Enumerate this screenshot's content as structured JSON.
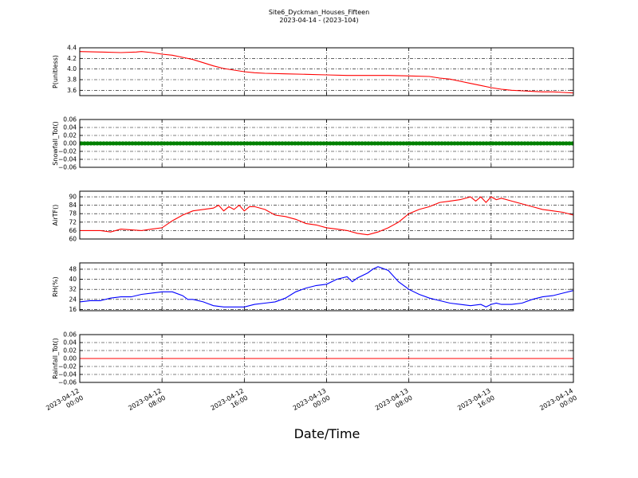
{
  "figure": {
    "title": "Site6_Dyckman_Houses_Fifteen",
    "subtitle": "2023-04-14 - (2023-104)",
    "xlabel": "Date/Time",
    "xticks": [
      [
        "2023-04-12",
        "00:00"
      ],
      [
        "2023-04-12",
        "08:00"
      ],
      [
        "2023-04-12",
        "16:00"
      ],
      [
        "2023-04-13",
        "00:00"
      ],
      [
        "2023-04-13",
        "08:00"
      ],
      [
        "2023-04-13",
        "16:00"
      ],
      [
        "2023-04-14",
        "00:00"
      ]
    ]
  },
  "chart_data": [
    {
      "type": "line",
      "ylabel": "P(unitless)",
      "color": "#ff0000",
      "ylim": [
        3.5,
        4.4
      ],
      "yticks": [
        3.6,
        3.8,
        4.0,
        4.2,
        4.4
      ],
      "ytick_labels": [
        "3.6",
        "3.8",
        "4.0",
        "4.2",
        "4.4"
      ],
      "x_hours": [
        0,
        2,
        4,
        5.5,
        6,
        7,
        8,
        9,
        10,
        11,
        12,
        13,
        14,
        15,
        16,
        17,
        18,
        20,
        22,
        24,
        26,
        28,
        30,
        32,
        34,
        35,
        36,
        37,
        38,
        39,
        40,
        41,
        42,
        43,
        44,
        45,
        46,
        47,
        48
      ],
      "values": [
        4.33,
        4.32,
        4.31,
        4.32,
        4.33,
        4.31,
        4.28,
        4.26,
        4.22,
        4.18,
        4.12,
        4.06,
        4.01,
        3.98,
        3.95,
        3.93,
        3.92,
        3.91,
        3.9,
        3.89,
        3.88,
        3.88,
        3.88,
        3.87,
        3.86,
        3.83,
        3.81,
        3.77,
        3.73,
        3.69,
        3.65,
        3.62,
        3.6,
        3.59,
        3.58,
        3.57,
        3.57,
        3.56,
        3.55
      ]
    },
    {
      "type": "line",
      "ylabel": "Snowfall_Tot()",
      "color": "#008000",
      "ylim": [
        -0.06,
        0.06
      ],
      "yticks": [
        -0.06,
        -0.04,
        -0.02,
        0.0,
        0.02,
        0.04,
        0.06
      ],
      "ytick_labels": [
        "−0.06",
        "−0.04",
        "−0.02",
        "0.00",
        "0.02",
        "0.04",
        "0.06"
      ],
      "x_hours": [
        0,
        48
      ],
      "values": [
        0,
        0
      ],
      "markers": true
    },
    {
      "type": "line",
      "ylabel": "AirTF()",
      "color": "#ff0000",
      "ylim": [
        60,
        94
      ],
      "yticks": [
        60,
        66,
        72,
        78,
        84,
        90
      ],
      "ytick_labels": [
        "60",
        "66",
        "72",
        "78",
        "84",
        "90"
      ],
      "x_hours": [
        0,
        2,
        3,
        4,
        6,
        7,
        8,
        9,
        10,
        11,
        12,
        13,
        13.5,
        14,
        14.5,
        15,
        15.5,
        16,
        16.5,
        17,
        18,
        19,
        20,
        21,
        22,
        23,
        24,
        25,
        26,
        27,
        28,
        29,
        30,
        31,
        32,
        33,
        34,
        35,
        36,
        37,
        38,
        38.5,
        39,
        39.5,
        40,
        40.5,
        41,
        42,
        43,
        44,
        45,
        46,
        47,
        48
      ],
      "values": [
        66,
        66,
        65,
        67,
        66,
        67,
        68,
        73,
        77,
        80,
        81,
        82,
        84,
        80,
        83,
        81,
        84,
        80,
        83,
        83,
        81,
        77,
        76,
        74,
        71,
        70,
        68,
        67,
        66,
        64,
        63,
        65,
        68,
        72,
        78,
        81,
        83,
        86,
        87,
        88,
        90,
        87,
        90,
        86,
        90,
        88,
        89,
        87,
        85,
        83,
        81,
        80,
        79,
        77
      ]
    },
    {
      "type": "line",
      "ylabel": "RH(%)",
      "color": "#0000ff",
      "ylim": [
        15,
        53
      ],
      "yticks": [
        16,
        24,
        32,
        40,
        48
      ],
      "ytick_labels": [
        "16",
        "24",
        "32",
        "40",
        "48"
      ],
      "x_hours": [
        0,
        1,
        2,
        3,
        4,
        5,
        6,
        7,
        8,
        9,
        10,
        10.5,
        11,
        12,
        13,
        14,
        15,
        16,
        17,
        18,
        19,
        20,
        21,
        22,
        23,
        24,
        25,
        26,
        26.5,
        27,
        28,
        28.5,
        29,
        30,
        31,
        32,
        33,
        34,
        35,
        36,
        37,
        38,
        39,
        39.5,
        40,
        40.5,
        41,
        42,
        43,
        44,
        45,
        46,
        47,
        48
      ],
      "values": [
        22,
        23,
        23,
        25,
        26,
        26,
        28,
        29,
        30,
        30,
        27,
        24,
        24,
        22,
        19,
        18,
        18,
        18,
        20,
        21,
        22,
        25,
        30,
        33,
        35,
        36,
        40,
        42,
        38,
        41,
        45,
        48,
        50,
        47,
        38,
        32,
        28,
        25,
        23,
        21,
        20,
        19,
        20,
        18,
        20,
        21,
        20,
        20,
        21,
        24,
        26,
        27,
        29,
        31
      ]
    },
    {
      "type": "line",
      "ylabel": "Rainfall_Tot()",
      "color": "#ff0000",
      "ylim": [
        -0.06,
        0.06
      ],
      "yticks": [
        -0.06,
        -0.04,
        -0.02,
        0.0,
        0.02,
        0.04,
        0.06
      ],
      "ytick_labels": [
        "−0.06",
        "−0.04",
        "−0.02",
        "0.00",
        "0.02",
        "0.04",
        "0.06"
      ],
      "x_hours": [
        0,
        48
      ],
      "values": [
        0,
        0
      ]
    }
  ]
}
